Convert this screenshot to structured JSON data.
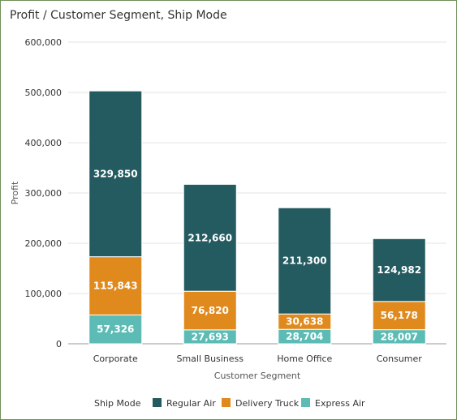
{
  "title": "Profit / Customer Segment, Ship Mode",
  "chart_data": {
    "type": "bar",
    "stacked": true,
    "title": "Profit / Customer Segment, Ship Mode",
    "xlabel": "Customer Segment",
    "ylabel": "Profit",
    "categories": [
      "Corporate",
      "Small Business",
      "Home Office",
      "Consumer"
    ],
    "ylim": [
      0,
      600000
    ],
    "yticks": [
      0,
      100000,
      200000,
      300000,
      400000,
      500000,
      600000
    ],
    "ytick_labels": [
      "0",
      "100,000",
      "200,000",
      "300,000",
      "400,000",
      "500,000",
      "600,000"
    ],
    "grid": true,
    "legend_title": "Ship Mode",
    "legend_position": "bottom",
    "series": [
      {
        "name": "Express Air",
        "color": "#5cbcb5",
        "values": [
          57326,
          27693,
          28704,
          28007
        ],
        "labels": [
          "57,326",
          "27,693",
          "28,704",
          "28,007"
        ]
      },
      {
        "name": "Delivery Truck",
        "color": "#e08a1e",
        "values": [
          115843,
          76820,
          30638,
          56178
        ],
        "labels": [
          "115,843",
          "76,820",
          "30,638",
          "56,178"
        ]
      },
      {
        "name": "Regular Air",
        "color": "#245b61",
        "values": [
          329850,
          212660,
          211300,
          124982
        ],
        "labels": [
          "329,850",
          "212,660",
          "211,300",
          "124,982"
        ]
      }
    ],
    "legend_order": [
      "Regular Air",
      "Delivery Truck",
      "Express Air"
    ]
  }
}
